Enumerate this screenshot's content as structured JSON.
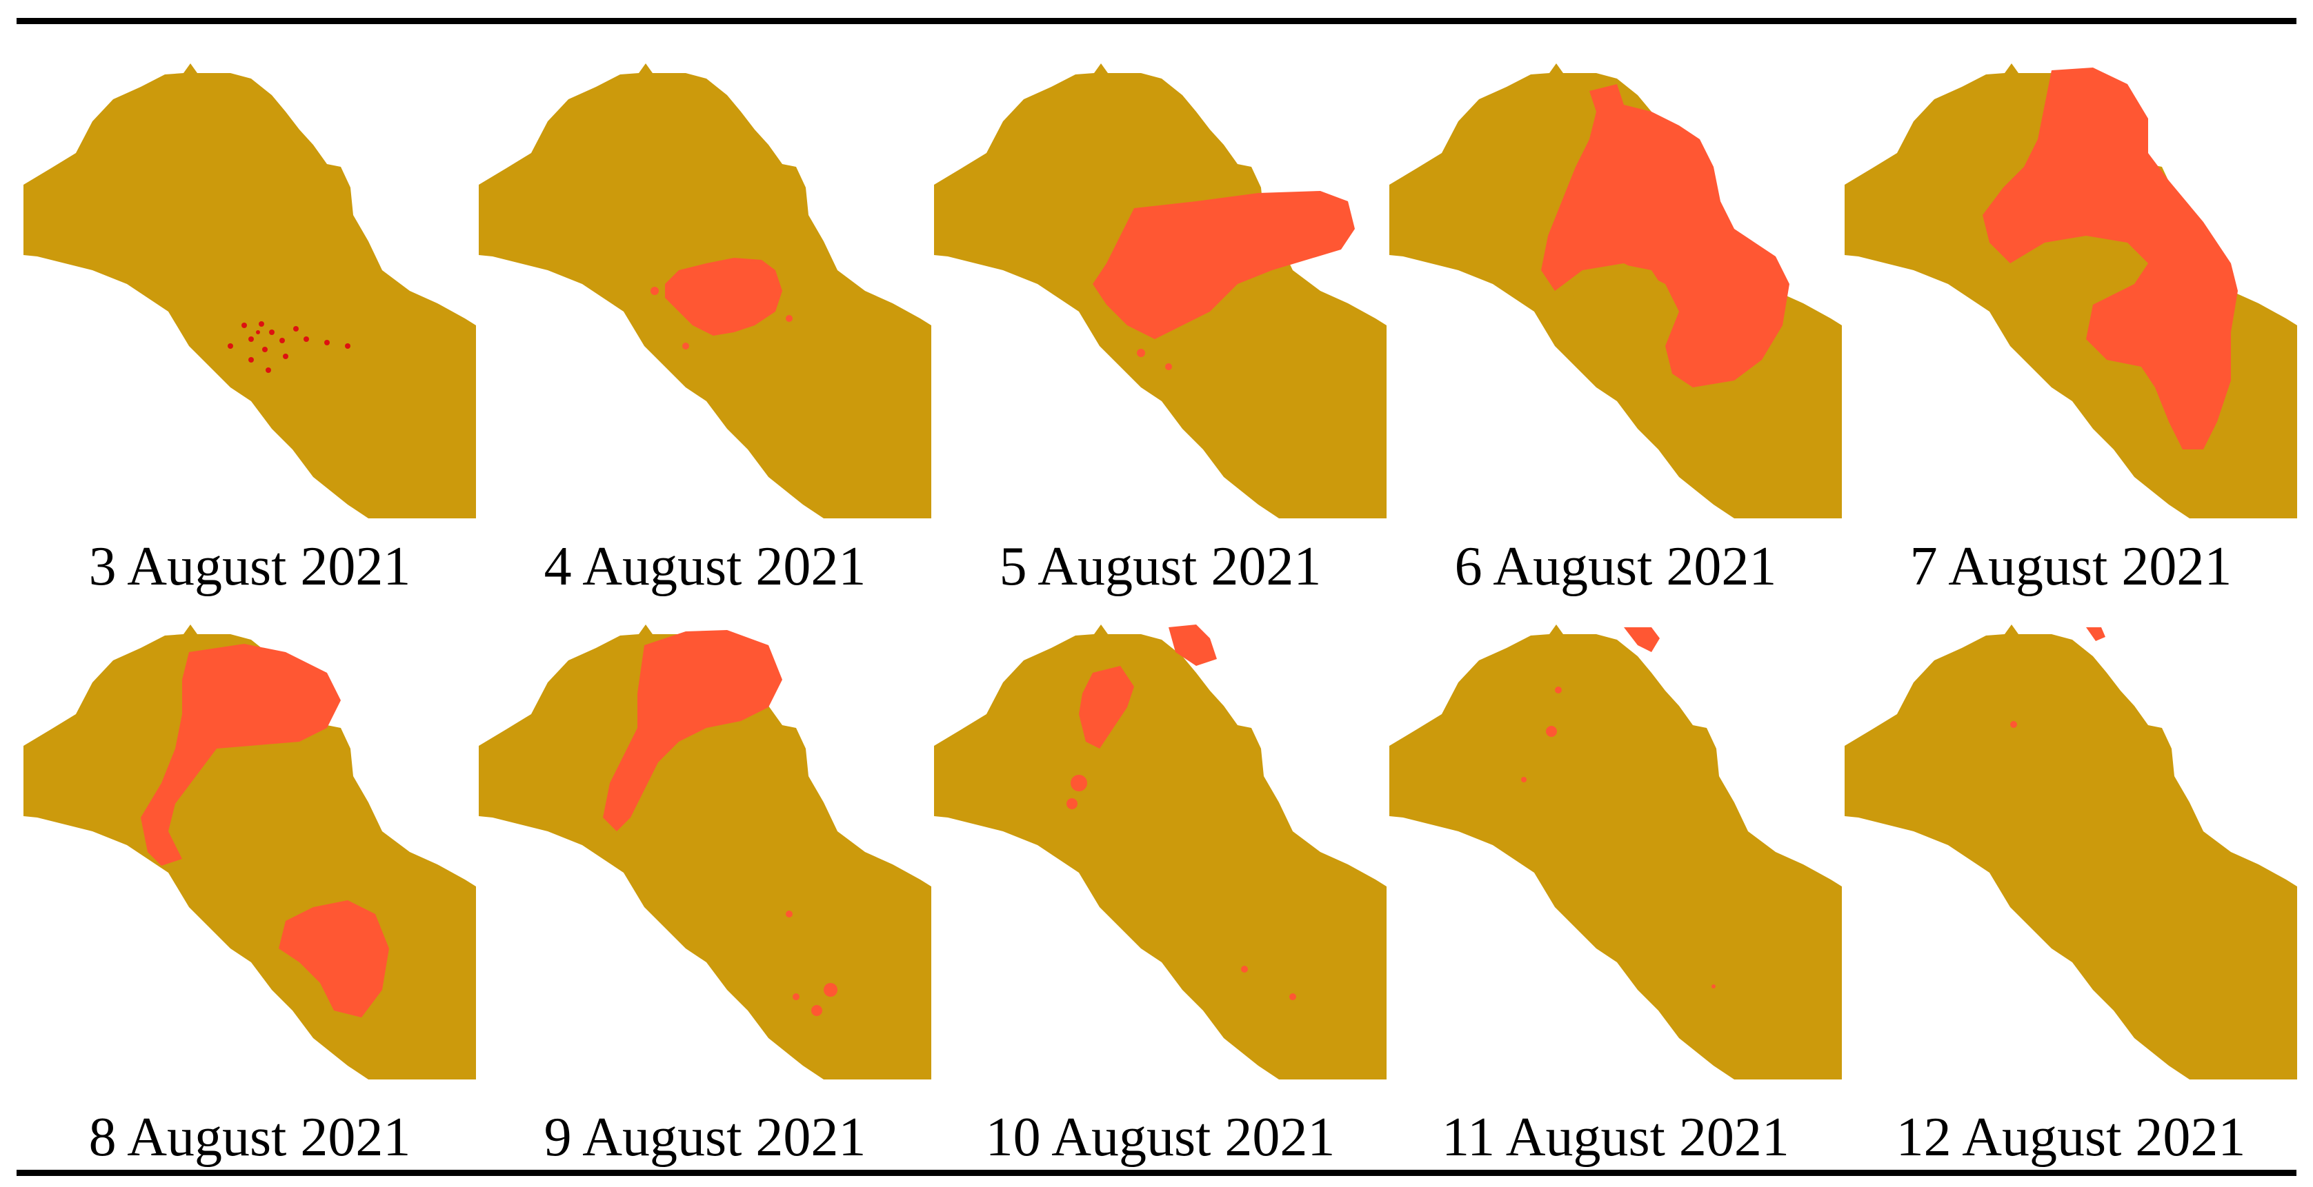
{
  "colors": {
    "land": "#cc9a0c",
    "burned": "#ff5733",
    "fire_point": "#dd1111",
    "rule": "#000000",
    "background": "#ffffff"
  },
  "panels": [
    {
      "caption": "3 August 2021"
    },
    {
      "caption": "4 August 2021"
    },
    {
      "caption": "5 August 2021"
    },
    {
      "caption": "6 August 2021"
    },
    {
      "caption": "7 August 2021"
    },
    {
      "caption": "8 August 2021"
    },
    {
      "caption": "9 August 2021"
    },
    {
      "caption": "10 August 2021"
    },
    {
      "caption": "11 August 2021"
    },
    {
      "caption": "12 August 2021"
    }
  ]
}
